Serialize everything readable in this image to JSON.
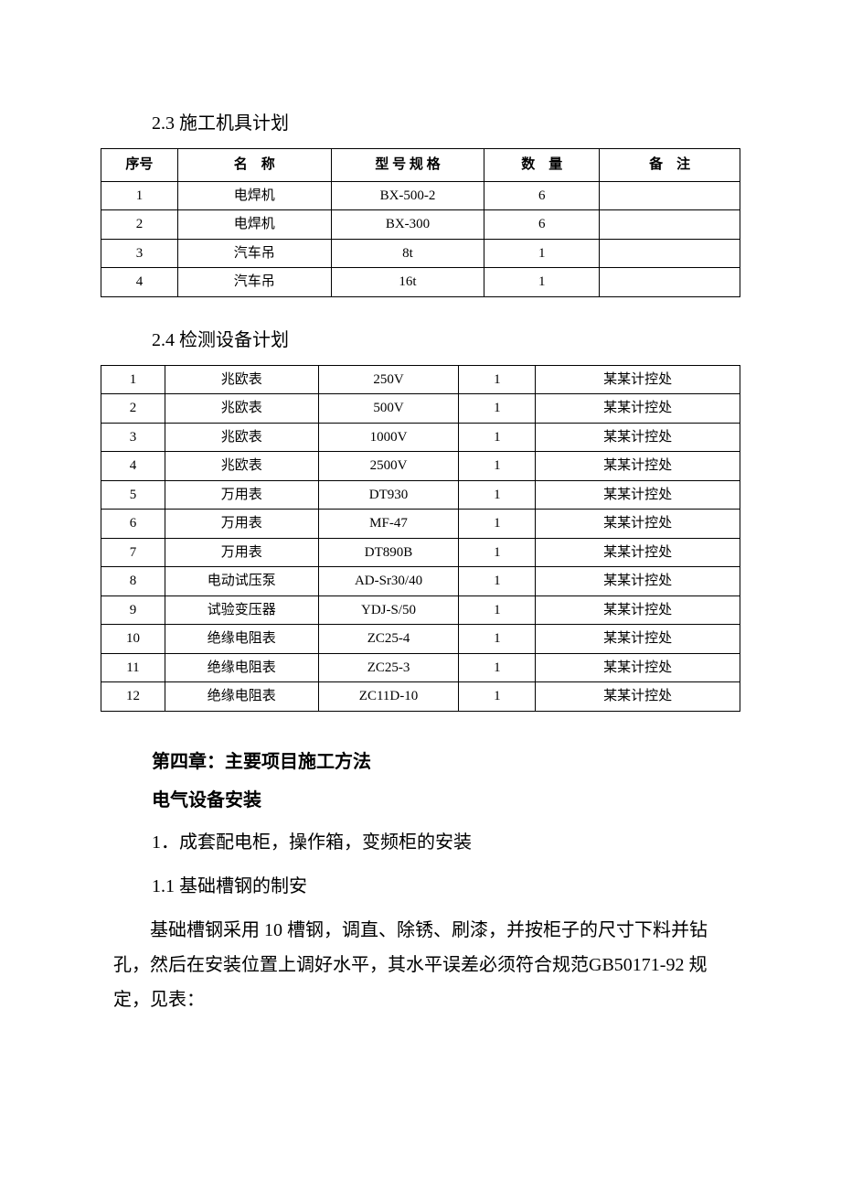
{
  "section23": {
    "title": "2.3 施工机具计划",
    "headers": [
      "序号",
      "名　称",
      "型 号 规 格",
      "数　量",
      "备　注"
    ],
    "rows": [
      [
        "1",
        "电焊机",
        "BX-500-2",
        "6",
        ""
      ],
      [
        "2",
        "电焊机",
        "BX-300",
        "6",
        ""
      ],
      [
        "3",
        "汽车吊",
        "8t",
        "1",
        ""
      ],
      [
        "4",
        "汽车吊",
        "16t",
        "1",
        ""
      ]
    ]
  },
  "section24": {
    "title": "2.4 检测设备计划",
    "rows": [
      [
        "1",
        "兆欧表",
        "250V",
        "1",
        "某某计控处"
      ],
      [
        "2",
        "兆欧表",
        "500V",
        "1",
        "某某计控处"
      ],
      [
        "3",
        "兆欧表",
        "1000V",
        "1",
        "某某计控处"
      ],
      [
        "4",
        "兆欧表",
        "2500V",
        "1",
        "某某计控处"
      ],
      [
        "5",
        "万用表",
        "DT930",
        "1",
        "某某计控处"
      ],
      [
        "6",
        "万用表",
        "MF-47",
        "1",
        "某某计控处"
      ],
      [
        "7",
        "万用表",
        "DT890B",
        "1",
        "某某计控处"
      ],
      [
        "8",
        "电动试压泵",
        "AD-Sr30/40",
        "1",
        "某某计控处"
      ],
      [
        "9",
        "试验变压器",
        "YDJ-S/50",
        "1",
        "某某计控处"
      ],
      [
        "10",
        "绝缘电阻表",
        "ZC25-4",
        "1",
        "某某计控处"
      ],
      [
        "11",
        "绝缘电阻表",
        "ZC25-3",
        "1",
        "某某计控处"
      ],
      [
        "12",
        "绝缘电阻表",
        "ZC11D-10",
        "1",
        "某某计控处"
      ]
    ]
  },
  "chapter4": {
    "title": "第四章：主要项目施工方法",
    "subtitle": "电气设备安装",
    "line1": "1．成套配电柜，操作箱，变频柜的安装",
    "line2": "1.1 基础槽钢的制安",
    "para": "基础槽钢采用 10 槽钢，调直、除锈、刷漆，并按柜子的尺寸下料并钻孔，然后在安装位置上调好水平，其水平误差必须符合规范GB50171-92 规定，见表："
  }
}
